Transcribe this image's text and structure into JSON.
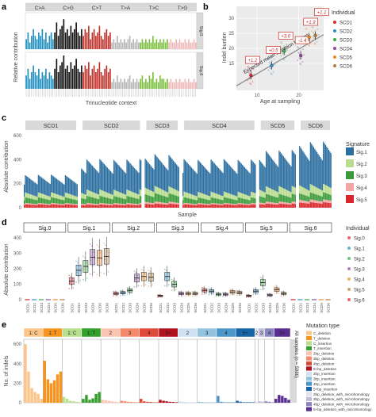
{
  "colors": {
    "CA": "#1f8fbf",
    "CG": "#111111",
    "CT": "#c0302a",
    "TA": "#b5b5b5",
    "TC": "#7cbf3f",
    "TG": "#f0b8b8",
    "strip": "#d9d9d9",
    "panel_bg": "#ebebeb",
    "sig1": "#2b6ea0",
    "sig2": "#b9dc8e",
    "sig3": "#3a9a3a",
    "sig4": "#f4a4a4",
    "sig5": "#d8262a",
    "ind": [
      "#d8262a",
      "#2d8fc4",
      "#3aa844",
      "#8e4a9e",
      "#f08a24",
      "#b57a3a"
    ]
  },
  "panel_a": {
    "label": "a",
    "mutation_types": [
      "C>A",
      "C>G",
      "C>T",
      "T>A",
      "T>C",
      "T>G"
    ],
    "signatures": [
      "Sig.0",
      "Sig.6"
    ],
    "ylabel": "Relative contribution",
    "xlabel": "Trinucleotide context",
    "chart_data": {
      "type": "bar",
      "facets": [
        "Sig.0",
        "Sig.6"
      ],
      "categories_note": "96 trinucleotide contexts grouped by 6 mutation types",
      "series": [
        {
          "name": "Sig.0",
          "values_by_type": {
            "C>A": [
              0.03,
              0.05,
              0.02,
              0.04,
              0.06,
              0.04,
              0.03,
              0.05,
              0.04,
              0.06,
              0.03,
              0.05,
              0.02,
              0.04,
              0.05,
              0.03
            ],
            "C>G": [
              0.05,
              0.08,
              0.04,
              0.06,
              0.07,
              0.09,
              0.05,
              0.06,
              0.04,
              0.07,
              0.05,
              0.06,
              0.08,
              0.05,
              0.04,
              0.06
            ],
            "C>T": [
              0.04,
              0.06,
              0.05,
              0.07,
              0.03,
              0.05,
              0.06,
              0.04,
              0.05,
              0.07,
              0.04,
              0.03,
              0.05,
              0.06,
              0.04,
              0.05
            ],
            "T>A": [
              0.02,
              0.03,
              0.02,
              0.04,
              0.02,
              0.03,
              0.02,
              0.03,
              0.02,
              0.03,
              0.04,
              0.02,
              0.03,
              0.02,
              0.03,
              0.02
            ],
            "T>C": [
              0.02,
              0.03,
              0.02,
              0.03,
              0.02,
              0.03,
              0.02,
              0.04,
              0.02,
              0.03,
              0.02,
              0.03,
              0.02,
              0.03,
              0.02,
              0.03
            ],
            "T>G": [
              0.02,
              0.03,
              0.02,
              0.02,
              0.03,
              0.02,
              0.03,
              0.02,
              0.02,
              0.03,
              0.02,
              0.03,
              0.02,
              0.02,
              0.03,
              0.02
            ]
          }
        },
        {
          "name": "Sig.6",
          "values_by_type": {
            "C>A": [
              0.04,
              0.06,
              0.03,
              0.05,
              0.07,
              0.05,
              0.04,
              0.06,
              0.03,
              0.05,
              0.04,
              0.06,
              0.03,
              0.05,
              0.04,
              0.03
            ],
            "C>G": [
              0.06,
              0.09,
              0.05,
              0.07,
              0.08,
              0.1,
              0.06,
              0.07,
              0.05,
              0.08,
              0.06,
              0.07,
              0.09,
              0.06,
              0.05,
              0.07
            ],
            "C>T": [
              0.05,
              0.07,
              0.06,
              0.08,
              0.04,
              0.06,
              0.07,
              0.05,
              0.06,
              0.08,
              0.05,
              0.04,
              0.06,
              0.07,
              0.05,
              0.06
            ],
            "T>A": [
              0.02,
              0.03,
              0.02,
              0.04,
              0.02,
              0.03,
              0.02,
              0.03,
              0.02,
              0.03,
              0.04,
              0.02,
              0.03,
              0.02,
              0.03,
              0.02
            ],
            "T>C": [
              0.03,
              0.04,
              0.02,
              0.03,
              0.02,
              0.04,
              0.03,
              0.05,
              0.02,
              0.03,
              0.02,
              0.04,
              0.03,
              0.03,
              0.02,
              0.03
            ],
            "T>G": [
              0.02,
              0.03,
              0.02,
              0.02,
              0.03,
              0.02,
              0.03,
              0.02,
              0.02,
              0.03,
              0.02,
              0.03,
              0.02,
              0.02,
              0.03,
              0.02
            ]
          }
        }
      ]
    }
  },
  "panel_b": {
    "label": "b",
    "xlabel": "Age at sampling",
    "ylabel": "Indel burden",
    "line_label": "Expected mean mutation burden",
    "legend_title": "Individual",
    "legend": [
      "SCD1",
      "SCD2",
      "SCD3",
      "SCD4",
      "SCD5",
      "SCD6"
    ],
    "yticks": [
      "15",
      "20",
      "25",
      "30"
    ],
    "xticks": [
      "10",
      "20"
    ],
    "chart_data": {
      "type": "scatter",
      "xlim": [
        5,
        26
      ],
      "ylim": [
        6,
        34
      ],
      "points": [
        {
          "individual": "SCD1",
          "x": 8.5,
          "y": 11.0,
          "annotation": "+1.2"
        },
        {
          "individual": "SCD2",
          "x": 13.5,
          "y": 14.3,
          "annotation": "+0.5"
        },
        {
          "individual": "SCD3",
          "x": 16.5,
          "y": 19.1,
          "annotation": "+3.0"
        },
        {
          "individual": "SCD4",
          "x": 20.5,
          "y": 17.6,
          "annotation": "-1.4"
        },
        {
          "individual": "SCD5",
          "x": 22.5,
          "y": 23.7,
          "annotation": "+1.9"
        },
        {
          "individual": "SCD6",
          "x": 24.0,
          "y": 24.3,
          "annotation": "+1.1"
        }
      ],
      "expected_line": {
        "x": [
          5,
          26
        ],
        "y": [
          7.5,
          24.6
        ]
      }
    }
  },
  "panel_c": {
    "label": "c",
    "individuals": [
      "SCD1",
      "SCD2",
      "SCD3",
      "SCD4",
      "SCD5",
      "SCD6"
    ],
    "ylabel": "Absolute contribution",
    "xlabel": "Sample",
    "yticks": [
      "0",
      "200",
      "400",
      "600"
    ],
    "legend_title": "Signature",
    "legend": [
      "Sig.1",
      "Sig.2",
      "Sig.3",
      "Sig.4",
      "Sig.5"
    ],
    "chart_data": {
      "type": "bar",
      "stacked": true,
      "ylim": [
        0,
        620
      ],
      "facets": [
        "SCD1",
        "SCD2",
        "SCD3",
        "SCD4",
        "SCD5",
        "SCD6"
      ],
      "samples_per_facet": [
        50,
        56,
        32,
        68,
        34,
        30
      ],
      "mean_totals": [
        235,
        345,
        380,
        345,
        410,
        470
      ],
      "series": [
        {
          "name": "Sig.1",
          "mean_values": [
            125,
            215,
            225,
            230,
            255,
            300
          ]
        },
        {
          "name": "Sig.2",
          "mean_values": [
            35,
            45,
            50,
            40,
            55,
            60
          ]
        },
        {
          "name": "Sig.3",
          "mean_values": [
            40,
            50,
            60,
            40,
            55,
            50
          ]
        },
        {
          "name": "Sig.4",
          "mean_values": [
            10,
            12,
            15,
            10,
            15,
            20
          ]
        },
        {
          "name": "Sig.5",
          "mean_values": [
            25,
            23,
            30,
            25,
            30,
            40
          ]
        }
      ]
    }
  },
  "panel_d": {
    "label": "d",
    "signatures": [
      "Sig.0",
      "Sig.1",
      "Sig.2",
      "Sig.3",
      "Sig.4",
      "Sig.5",
      "Sig.6"
    ],
    "samples": [
      "SCD1",
      "SCD2",
      "SCD3",
      "SCD4",
      "SCD5",
      "SCD6"
    ],
    "ylabel": "Absolute contribution",
    "yticks": [
      "0",
      "100",
      "200",
      "300",
      "400"
    ],
    "legend_title": "Individual",
    "legend": [
      "Sig.0",
      "Sig.1",
      "Sig.2",
      "Sig.3",
      "Sig.4",
      "Sig.5",
      "Sig.6"
    ],
    "chart_data": {
      "type": "boxplot",
      "ylim": [
        0,
        420
      ],
      "medians": {
        "Sig.0": [
          0,
          0,
          0,
          0,
          0,
          0
        ],
        "Sig.1": [
          120,
          190,
          215,
          275,
          270,
          280
        ],
        "Sig.2": [
          40,
          45,
          60,
          140,
          150,
          145
        ],
        "Sig.3": [
          25,
          150,
          100,
          40,
          40,
          40
        ],
        "Sig.4": [
          60,
          55,
          35,
          35,
          50,
          45
        ],
        "Sig.5": [
          25,
          55,
          110,
          30,
          65,
          40
        ],
        "Sig.6": [
          0,
          0,
          0,
          0,
          0,
          0
        ]
      }
    }
  },
  "panel_e": {
    "label": "e",
    "ylabel": "No. of indels",
    "yticks": [
      "0",
      "200",
      "400",
      "600"
    ],
    "groups": [
      "1: C",
      "1: T",
      "1: C",
      "1: T",
      "2",
      "3",
      "4",
      "5+",
      "2",
      "3",
      "4",
      "5+",
      "2",
      "3",
      "4",
      "5+"
    ],
    "side_label": "All samples (n = 5986)",
    "legend_title": "Mutation type",
    "legend": [
      "C_deletion",
      "T_deletion",
      "C_insertion",
      "T_insertion",
      "2bp_deletion",
      "3bp_deletion",
      "4bp_deletion",
      "5+bp_deletion",
      "2bp_insertion",
      "3bp_insertion",
      "4bp_insertion",
      "5+bp_insertion",
      "2bp_deletion_with_microhomology",
      "3bp_deletion_with_microhomology",
      "4bp_deletion_with_microhomology",
      "5+bp_deletion_with_microhomology"
    ],
    "legend_colors": [
      "#fcc68a",
      "#f7941d",
      "#b8e08c",
      "#34a02c",
      "#fcc5b2",
      "#f6896c",
      "#e04a3a",
      "#b0121e",
      "#cfe1f2",
      "#93c3df",
      "#4a98c9",
      "#1565a8",
      "#e3e2ef",
      "#bfbddb",
      "#8a85bd",
      "#5a2d91"
    ],
    "chart_data": {
      "type": "bar",
      "ylim": [
        0,
        650
      ],
      "groups": [
        {
          "type": "C_deletion",
          "values": [
            600,
            320,
            150,
            110,
            90,
            40
          ]
        },
        {
          "type": "T_deletion",
          "values": [
            430,
            240,
            200,
            230,
            290,
            320
          ]
        },
        {
          "type": "C_insertion",
          "values": [
            60,
            40,
            20,
            15,
            10,
            5
          ]
        },
        {
          "type": "T_insertion",
          "values": [
            40,
            80,
            30,
            45,
            90,
            110
          ]
        },
        {
          "type": "2bp_deletion",
          "values": [
            30,
            25,
            20,
            15,
            10,
            5
          ]
        },
        {
          "type": "3bp_deletion",
          "values": [
            20,
            15,
            10,
            8,
            5,
            5
          ]
        },
        {
          "type": "4bp_deletion",
          "values": [
            40,
            15,
            10,
            8,
            5,
            5
          ]
        },
        {
          "type": "5+bp_deletion",
          "values": [
            30,
            20,
            15,
            10,
            8,
            5
          ]
        },
        {
          "type": "2bp_insertion",
          "values": [
            15,
            10,
            8,
            5,
            5,
            5
          ]
        },
        {
          "type": "3bp_insertion",
          "values": [
            10,
            8,
            5,
            5,
            5,
            5
          ]
        },
        {
          "type": "4bp_insertion",
          "values": [
            70,
            10,
            5,
            5,
            5,
            5
          ]
        },
        {
          "type": "5+bp_insertion",
          "values": [
            20,
            10,
            5,
            5,
            5,
            5
          ]
        },
        {
          "type": "2bp_deletion_with_microhomology",
          "values": [
            10
          ]
        },
        {
          "type": "3bp_deletion_with_microhomology",
          "values": [
            15,
            10
          ]
        },
        {
          "type": "4bp_deletion_with_microhomology",
          "values": [
            15,
            10,
            5
          ]
        },
        {
          "type": "5+bp_deletion_with_microhomology",
          "values": [
            40,
            80,
            70,
            50,
            30
          ]
        }
      ]
    }
  }
}
